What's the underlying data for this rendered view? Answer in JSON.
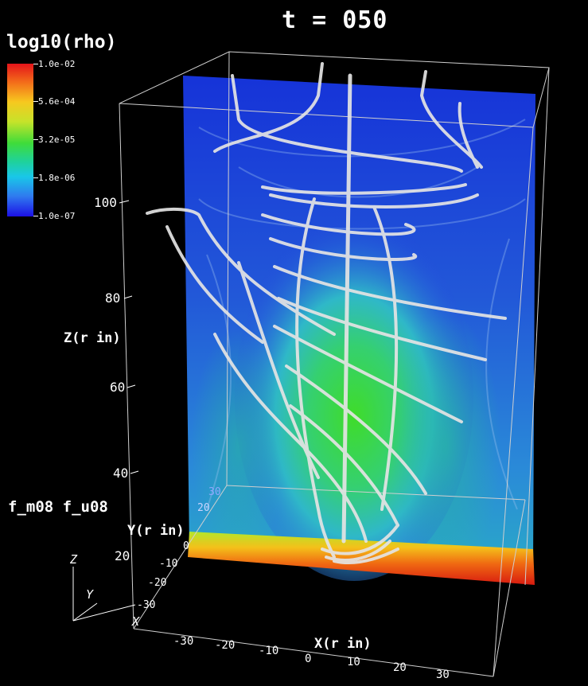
{
  "title": "t = 050",
  "colorbar": {
    "variable": "log10(rho)",
    "ticks": [
      "1.0e-02",
      "5.6e-04",
      "3.2e-05",
      "1.8e-06",
      "1.0e-07"
    ]
  },
  "run_label": "f_m08 f_u08",
  "axes": {
    "z_label": "Z(r in)",
    "z_ticks": [
      "100",
      "80",
      "60",
      "40",
      "20"
    ],
    "y_label": "Y(r in)",
    "y_ticks": [
      "30",
      "20",
      "0",
      "-10",
      "-20",
      "-30"
    ],
    "x_label": "X(r in)",
    "x_ticks": [
      "-30",
      "-20",
      "-10",
      "0",
      "10",
      "20",
      "30"
    ],
    "triad": {
      "z": "Z",
      "y": "Y",
      "x": "X"
    }
  },
  "colors": {
    "background": "#000000",
    "volume_low": "#1d2fe0",
    "volume_mid": "#2fc6b0",
    "volume_core": "#4fd838",
    "volume_base": "#e23a10",
    "streamlines": "#e6e6e6"
  }
}
